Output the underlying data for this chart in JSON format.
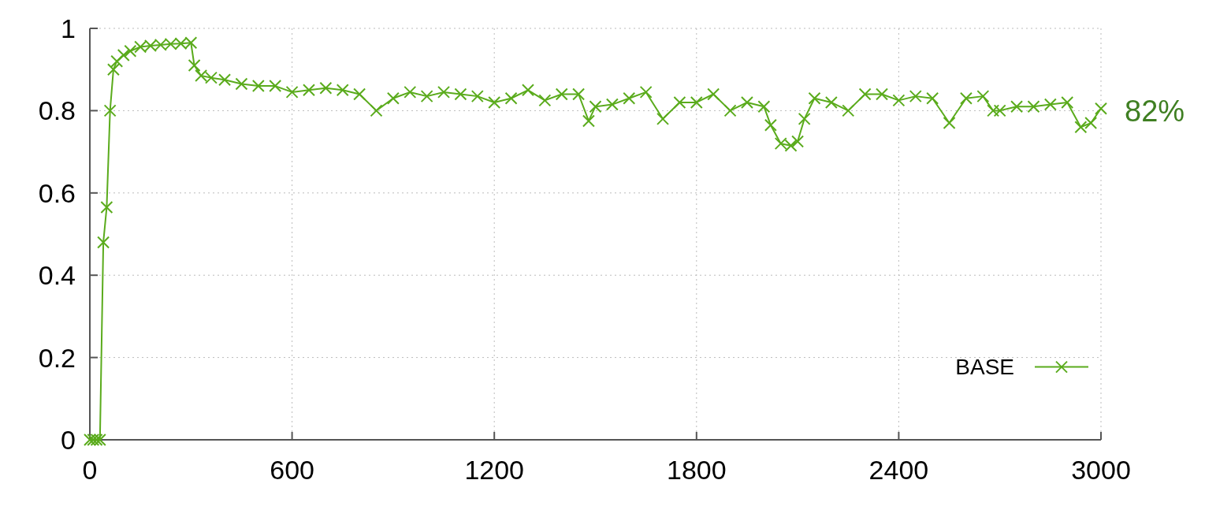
{
  "chart_data": {
    "type": "line",
    "x": [
      0,
      10,
      20,
      30,
      40,
      50,
      60,
      70,
      80,
      100,
      120,
      150,
      180,
      210,
      240,
      270,
      300,
      310,
      330,
      360,
      400,
      450,
      500,
      550,
      600,
      650,
      700,
      750,
      800,
      850,
      900,
      950,
      1000,
      1050,
      1100,
      1150,
      1200,
      1250,
      1300,
      1350,
      1400,
      1450,
      1480,
      1500,
      1550,
      1600,
      1650,
      1700,
      1750,
      1800,
      1850,
      1900,
      1950,
      2000,
      2020,
      2050,
      2080,
      2100,
      2120,
      2150,
      2200,
      2250,
      2300,
      2350,
      2400,
      2450,
      2500,
      2550,
      2600,
      2650,
      2680,
      2700,
      2750,
      2800,
      2850,
      2900,
      2940,
      2970,
      3000
    ],
    "series": [
      {
        "name": "BASE",
        "color": "#5aab1c",
        "values": [
          0,
          0,
          0,
          0,
          0.48,
          0.565,
          0.8,
          0.9,
          0.92,
          0.935,
          0.945,
          0.955,
          0.958,
          0.96,
          0.962,
          0.963,
          0.965,
          0.91,
          0.885,
          0.88,
          0.875,
          0.865,
          0.86,
          0.86,
          0.845,
          0.85,
          0.855,
          0.85,
          0.84,
          0.8,
          0.83,
          0.845,
          0.835,
          0.845,
          0.84,
          0.835,
          0.82,
          0.83,
          0.85,
          0.825,
          0.84,
          0.84,
          0.775,
          0.81,
          0.815,
          0.83,
          0.845,
          0.78,
          0.82,
          0.82,
          0.84,
          0.8,
          0.82,
          0.81,
          0.765,
          0.72,
          0.715,
          0.725,
          0.78,
          0.83,
          0.82,
          0.8,
          0.84,
          0.84,
          0.825,
          0.835,
          0.83,
          0.77,
          0.83,
          0.835,
          0.8,
          0.8,
          0.81,
          0.81,
          0.815,
          0.82,
          0.76,
          0.77,
          0.805
        ]
      }
    ],
    "xlim": [
      0,
      3000
    ],
    "xticks": [
      0,
      600,
      1200,
      1800,
      2400,
      3000
    ],
    "ylim": [
      0,
      1
    ],
    "yticks": [
      0,
      0.2,
      0.4,
      0.6,
      0.8,
      1
    ],
    "grid": true,
    "legend": "bottom right",
    "marker": "cross",
    "line_style": "solid",
    "annotations": [
      {
        "text": "82%",
        "x": 3000,
        "y": 0.8
      }
    ]
  }
}
